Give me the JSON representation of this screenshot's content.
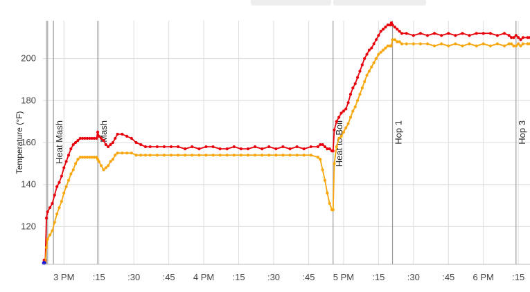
{
  "chart_data": {
    "type": "line",
    "title": "",
    "xlabel": "",
    "ylabel": "Temperature (°F)",
    "ylim": [
      102,
      218
    ],
    "xlim": [
      "2:51 PM",
      "6:20 PM"
    ],
    "grid": true,
    "yticks": [
      120,
      140,
      160,
      180,
      200
    ],
    "xticks": [
      {
        "t": 180,
        "label": "3 PM"
      },
      {
        "t": 195,
        "label": ":15"
      },
      {
        "t": 210,
        "label": ":30"
      },
      {
        "t": 225,
        "label": ":45"
      },
      {
        "t": 240,
        "label": "4 PM"
      },
      {
        "t": 255,
        "label": ":15"
      },
      {
        "t": 270,
        "label": ":30"
      },
      {
        "t": 285,
        "label": ":45"
      },
      {
        "t": 300,
        "label": "5 PM"
      },
      {
        "t": 315,
        "label": ":15"
      },
      {
        "t": 330,
        "label": ":30"
      },
      {
        "t": 345,
        "label": ":45"
      },
      {
        "t": 360,
        "label": "6 PM"
      },
      {
        "t": 375,
        "label": ":15"
      }
    ],
    "events": [
      {
        "t": 175.5,
        "label": "Heat Mash"
      },
      {
        "t": 194.5,
        "label": "Mash"
      },
      {
        "t": 295.5,
        "label": "Heat to Boil"
      },
      {
        "t": 321,
        "label": "Hop 1"
      },
      {
        "t": 374,
        "label": "Hop 3"
      }
    ],
    "start_marker": {
      "t": 171.5,
      "y": 102
    },
    "series": [
      {
        "color": "#e8000b",
        "points": [
          [
            171.5,
            104
          ],
          [
            172,
            104
          ],
          [
            172.5,
            124
          ],
          [
            173,
            127
          ],
          [
            174,
            129
          ],
          [
            175,
            131
          ],
          [
            176,
            135
          ],
          [
            177,
            139
          ],
          [
            178,
            141
          ],
          [
            179,
            144
          ],
          [
            180,
            148
          ],
          [
            181,
            151
          ],
          [
            182,
            154
          ],
          [
            183,
            157
          ],
          [
            184,
            159
          ],
          [
            185,
            160
          ],
          [
            186,
            161
          ],
          [
            187,
            162
          ],
          [
            188,
            162
          ],
          [
            189,
            162
          ],
          [
            190,
            162
          ],
          [
            191,
            162
          ],
          [
            192,
            162
          ],
          [
            193,
            162
          ],
          [
            194,
            162
          ],
          [
            194.5,
            165
          ],
          [
            195,
            163
          ],
          [
            196,
            162
          ],
          [
            197,
            161
          ],
          [
            198,
            159
          ],
          [
            199,
            158
          ],
          [
            200,
            159
          ],
          [
            201,
            160
          ],
          [
            202,
            162
          ],
          [
            203,
            164
          ],
          [
            205,
            164
          ],
          [
            207,
            163
          ],
          [
            209,
            162
          ],
          [
            211,
            160
          ],
          [
            213,
            159
          ],
          [
            215,
            158
          ],
          [
            217,
            158
          ],
          [
            220,
            158
          ],
          [
            223,
            158
          ],
          [
            226,
            158
          ],
          [
            229,
            158
          ],
          [
            232,
            157
          ],
          [
            235,
            158
          ],
          [
            238,
            157
          ],
          [
            241,
            158
          ],
          [
            244,
            158
          ],
          [
            247,
            157
          ],
          [
            250,
            157
          ],
          [
            253,
            158
          ],
          [
            256,
            157
          ],
          [
            259,
            157
          ],
          [
            262,
            158
          ],
          [
            265,
            157
          ],
          [
            268,
            158
          ],
          [
            271,
            157
          ],
          [
            274,
            158
          ],
          [
            277,
            157
          ],
          [
            280,
            158
          ],
          [
            283,
            157
          ],
          [
            286,
            158
          ],
          [
            289,
            158
          ],
          [
            290,
            159
          ],
          [
            291,
            159
          ],
          [
            292,
            158
          ],
          [
            293,
            157
          ],
          [
            294,
            157
          ],
          [
            295,
            156
          ],
          [
            295.5,
            156
          ],
          [
            296,
            166
          ],
          [
            297,
            170
          ],
          [
            298,
            172
          ],
          [
            299,
            174
          ],
          [
            300,
            175
          ],
          [
            301,
            176
          ],
          [
            302,
            179
          ],
          [
            303,
            183
          ],
          [
            304,
            186
          ],
          [
            305,
            188
          ],
          [
            306,
            191
          ],
          [
            307,
            194
          ],
          [
            308,
            197
          ],
          [
            309,
            200
          ],
          [
            310,
            202
          ],
          [
            311,
            204
          ],
          [
            312,
            205
          ],
          [
            313,
            207
          ],
          [
            314,
            209
          ],
          [
            315,
            211
          ],
          [
            316,
            213
          ],
          [
            317,
            214
          ],
          [
            318,
            215
          ],
          [
            319,
            216
          ],
          [
            320,
            216
          ],
          [
            320.5,
            217
          ],
          [
            321,
            216
          ],
          [
            322,
            215
          ],
          [
            323,
            214
          ],
          [
            324,
            213
          ],
          [
            325,
            212
          ],
          [
            327,
            212
          ],
          [
            330,
            211
          ],
          [
            333,
            212
          ],
          [
            336,
            211
          ],
          [
            339,
            212
          ],
          [
            342,
            211
          ],
          [
            345,
            212
          ],
          [
            348,
            211
          ],
          [
            351,
            212
          ],
          [
            354,
            211
          ],
          [
            357,
            212
          ],
          [
            360,
            212
          ],
          [
            363,
            212
          ],
          [
            366,
            211
          ],
          [
            369,
            212
          ],
          [
            371,
            211
          ],
          [
            372,
            210
          ],
          [
            373,
            210
          ],
          [
            374,
            211
          ],
          [
            375,
            210
          ],
          [
            376,
            209
          ],
          [
            377,
            210
          ],
          [
            379,
            210
          ],
          [
            380,
            210
          ]
        ]
      },
      {
        "color": "#f7a60b",
        "points": [
          [
            171.5,
            103
          ],
          [
            172,
            103
          ],
          [
            172.5,
            110
          ],
          [
            173,
            114
          ],
          [
            174,
            116
          ],
          [
            175,
            118
          ],
          [
            176,
            122
          ],
          [
            177,
            126
          ],
          [
            178,
            129
          ],
          [
            179,
            132
          ],
          [
            180,
            136
          ],
          [
            181,
            139
          ],
          [
            182,
            142
          ],
          [
            183,
            145
          ],
          [
            184,
            147
          ],
          [
            185,
            150
          ],
          [
            186,
            152
          ],
          [
            187,
            153
          ],
          [
            188,
            153
          ],
          [
            189,
            153
          ],
          [
            190,
            153
          ],
          [
            191,
            153
          ],
          [
            192,
            153
          ],
          [
            193,
            153
          ],
          [
            194,
            153
          ],
          [
            194.5,
            152
          ],
          [
            195,
            151
          ],
          [
            196,
            149
          ],
          [
            197,
            147
          ],
          [
            198,
            148
          ],
          [
            199,
            149
          ],
          [
            200,
            151
          ],
          [
            201,
            152
          ],
          [
            202,
            154
          ],
          [
            203,
            155
          ],
          [
            205,
            155
          ],
          [
            207,
            155
          ],
          [
            209,
            155
          ],
          [
            211,
            154
          ],
          [
            213,
            154
          ],
          [
            215,
            154
          ],
          [
            217,
            154
          ],
          [
            220,
            154
          ],
          [
            223,
            154
          ],
          [
            226,
            154
          ],
          [
            229,
            154
          ],
          [
            232,
            154
          ],
          [
            235,
            154
          ],
          [
            238,
            154
          ],
          [
            241,
            154
          ],
          [
            244,
            154
          ],
          [
            247,
            154
          ],
          [
            250,
            154
          ],
          [
            253,
            154
          ],
          [
            256,
            154
          ],
          [
            259,
            154
          ],
          [
            262,
            154
          ],
          [
            265,
            154
          ],
          [
            268,
            154
          ],
          [
            271,
            154
          ],
          [
            274,
            154
          ],
          [
            277,
            154
          ],
          [
            280,
            154
          ],
          [
            283,
            154
          ],
          [
            286,
            154
          ],
          [
            289,
            153
          ],
          [
            290,
            152
          ],
          [
            291,
            147
          ],
          [
            292,
            142
          ],
          [
            293,
            136
          ],
          [
            294,
            131
          ],
          [
            295,
            128
          ],
          [
            295.5,
            128
          ],
          [
            296,
            150
          ],
          [
            297,
            158
          ],
          [
            298,
            162
          ],
          [
            299,
            163
          ],
          [
            300,
            165
          ],
          [
            301,
            167
          ],
          [
            302,
            169
          ],
          [
            303,
            172
          ],
          [
            304,
            175
          ],
          [
            305,
            177
          ],
          [
            306,
            180
          ],
          [
            307,
            183
          ],
          [
            308,
            186
          ],
          [
            309,
            189
          ],
          [
            310,
            192
          ],
          [
            311,
            194
          ],
          [
            312,
            196
          ],
          [
            313,
            198
          ],
          [
            314,
            200
          ],
          [
            315,
            202
          ],
          [
            316,
            203
          ],
          [
            317,
            204
          ],
          [
            318,
            205
          ],
          [
            319,
            206
          ],
          [
            320,
            206
          ],
          [
            320.5,
            206
          ],
          [
            321,
            209
          ],
          [
            322,
            209
          ],
          [
            323,
            208
          ],
          [
            324,
            208
          ],
          [
            325,
            207
          ],
          [
            327,
            207
          ],
          [
            330,
            207
          ],
          [
            333,
            207
          ],
          [
            336,
            207
          ],
          [
            339,
            206
          ],
          [
            342,
            207
          ],
          [
            345,
            206
          ],
          [
            348,
            207
          ],
          [
            351,
            206
          ],
          [
            354,
            207
          ],
          [
            357,
            206
          ],
          [
            360,
            207
          ],
          [
            363,
            206
          ],
          [
            366,
            207
          ],
          [
            369,
            206
          ],
          [
            371,
            207
          ],
          [
            372,
            207
          ],
          [
            373,
            206
          ],
          [
            374,
            206
          ],
          [
            375,
            207
          ],
          [
            376,
            206
          ],
          [
            377,
            207
          ],
          [
            379,
            207
          ],
          [
            380,
            207
          ]
        ]
      }
    ]
  }
}
